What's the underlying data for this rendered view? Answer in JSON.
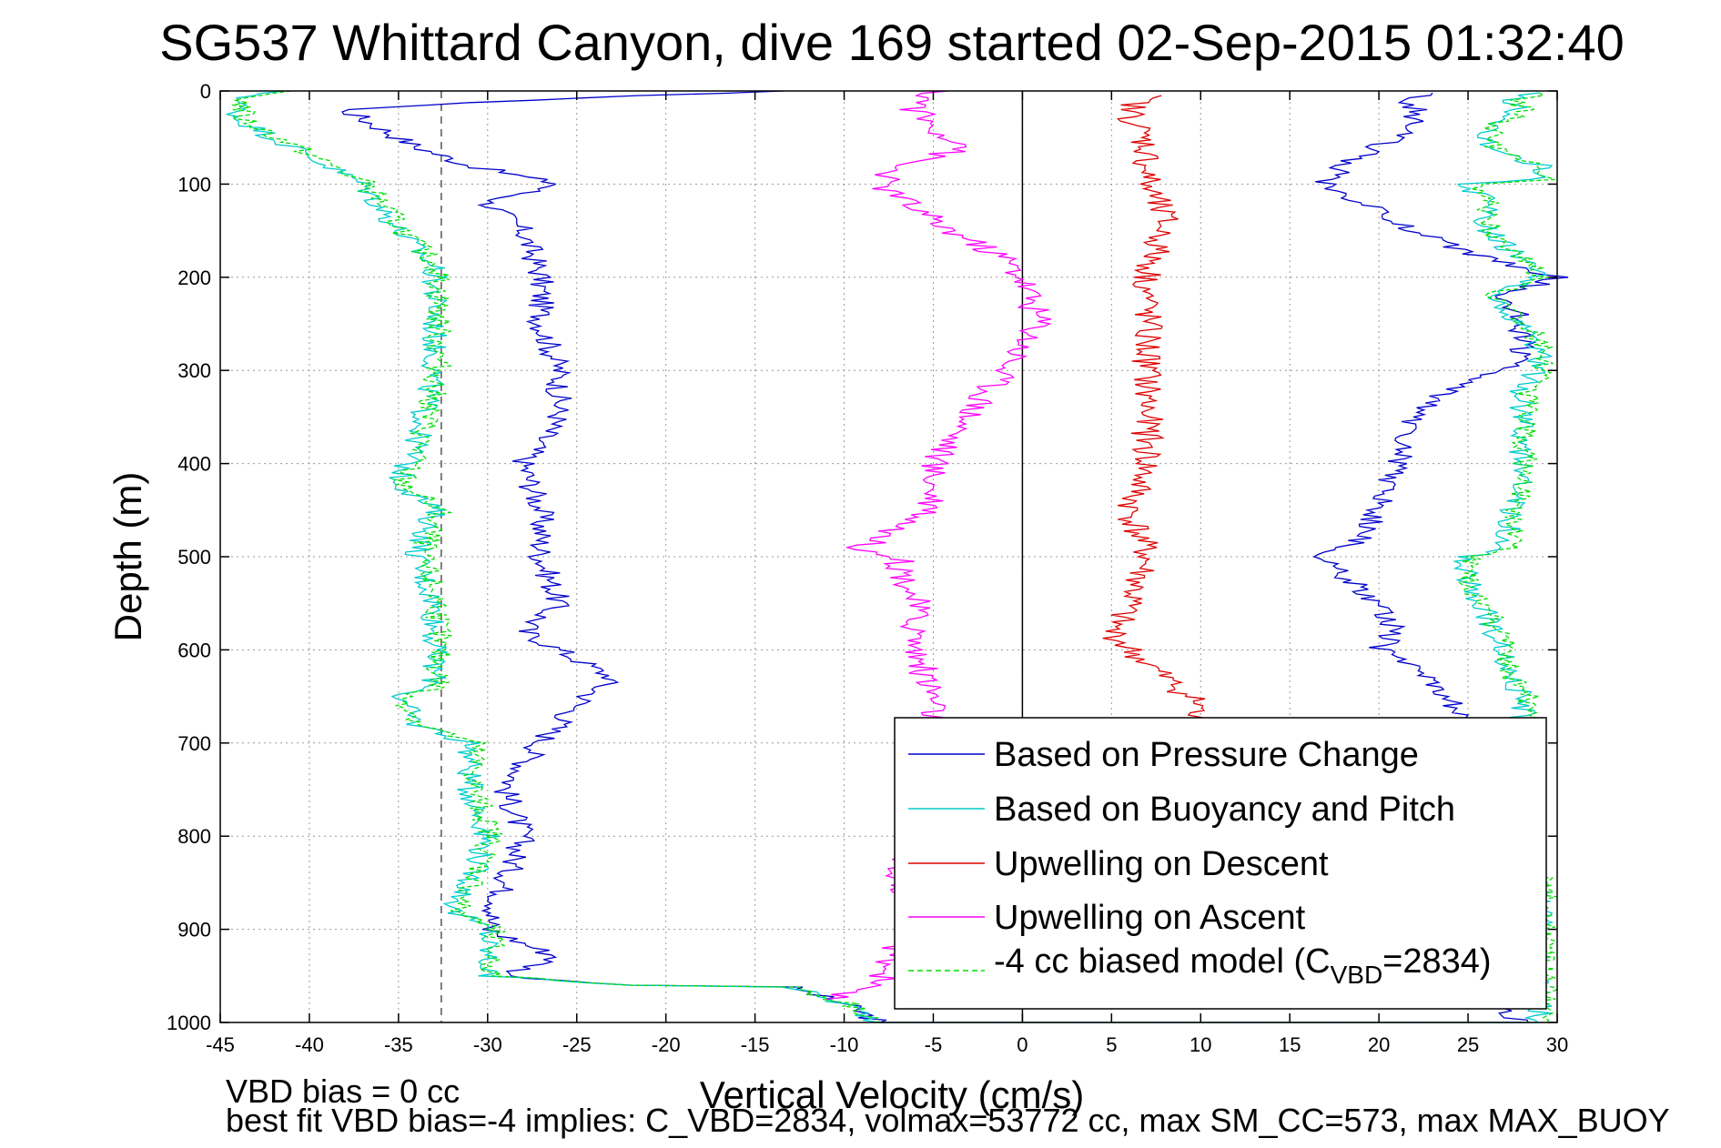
{
  "chart_data": {
    "type": "line",
    "title": "SG537 Whittard Canyon, dive 169 started 02-Sep-2015 01:32:40",
    "xlabel": "Vertical Velocity (cm/s)",
    "ylabel": "Depth (m)",
    "xlim": [
      -45,
      30
    ],
    "ylim": [
      0,
      1000
    ],
    "y_reversed": true,
    "grid": true,
    "legend_position": "bottom-right",
    "x_ticks": [
      "-45",
      "-40",
      "-35",
      "-30",
      "-25",
      "-20",
      "-15",
      "-10",
      "-5",
      "0",
      "5",
      "10",
      "15",
      "20",
      "25",
      "30"
    ],
    "y_ticks": [
      "0",
      "100",
      "200",
      "300",
      "400",
      "500",
      "600",
      "700",
      "800",
      "900",
      "1000"
    ],
    "reference_lines": [
      {
        "style": "solid",
        "color": "#000000",
        "x": 0
      },
      {
        "style": "dashed",
        "color": "#555555",
        "x": -32.6
      }
    ],
    "series": [
      {
        "name": "Based on Pressure Change",
        "color": "#0000cc",
        "style": "solid",
        "depth": [
          0,
          10,
          20,
          40,
          60,
          80,
          100,
          120,
          150,
          200,
          250,
          300,
          350,
          400,
          450,
          500,
          550,
          580,
          600,
          630,
          660,
          700,
          750,
          800,
          850,
          900,
          930,
          950,
          960,
          962,
          980,
          1000,
          1000,
          990,
          960,
          930,
          900,
          860,
          800,
          750,
          700,
          650,
          620,
          600,
          580,
          550,
          520,
          500,
          480,
          450,
          400,
          350,
          320,
          300,
          280,
          250,
          220,
          200,
          180,
          150,
          120,
          100,
          80,
          60,
          40,
          20,
          10,
          2
        ],
        "values": [
          -14,
          -28,
          -38,
          -36,
          -34,
          -31,
          -26,
          -30,
          -28,
          -27,
          -27,
          -26,
          -26,
          -28,
          -27,
          -27,
          -26,
          -28,
          -26,
          -23,
          -25,
          -27,
          -29,
          -28,
          -29,
          -30,
          -26,
          -29,
          -22,
          -13,
          -10,
          -8,
          28,
          27,
          26,
          26,
          25,
          25,
          25,
          25,
          25,
          24,
          22,
          20,
          21,
          20,
          18,
          17,
          19,
          20,
          21,
          22,
          24,
          27,
          28,
          28,
          27,
          30,
          26,
          22,
          19,
          17,
          18,
          20,
          22,
          22,
          21,
          23
        ]
      },
      {
        "name": "Based on Buoyancy and Pitch",
        "color": "#00cccc",
        "style": "solid",
        "depth": [
          0,
          10,
          30,
          60,
          100,
          150,
          190,
          200,
          250,
          300,
          380,
          420,
          450,
          500,
          550,
          600,
          640,
          650,
          680,
          700,
          750,
          800,
          850,
          880,
          900,
          950,
          960,
          962,
          980,
          1000,
          1000,
          900,
          860,
          800,
          700,
          650,
          620,
          600,
          560,
          540,
          500,
          490,
          400,
          350,
          320,
          300,
          280,
          250,
          220,
          200,
          180,
          150,
          120,
          100,
          95,
          80,
          60,
          40,
          20,
          10,
          2
        ],
        "values": [
          -42,
          -44,
          -44,
          -41,
          -37,
          -35,
          -33,
          -33,
          -33,
          -33,
          -34,
          -35,
          -33,
          -34,
          -33,
          -33,
          -33,
          -35,
          -34,
          -31,
          -31,
          -30,
          -31,
          -32,
          -30,
          -30,
          -22,
          -13,
          -10,
          -8,
          29,
          29,
          29,
          28,
          28,
          28,
          27,
          27,
          26,
          25,
          25,
          27,
          28,
          28,
          28,
          29,
          29,
          28,
          26,
          29,
          28,
          26,
          26,
          25,
          29,
          29,
          26,
          26,
          28,
          27,
          29
        ]
      },
      {
        "name": "Upwelling on Descent",
        "color": "#dd0000",
        "style": "solid",
        "depth": [
          5,
          20,
          60,
          100,
          140,
          200,
          250,
          300,
          350,
          400,
          450,
          500,
          550,
          580,
          600,
          630,
          660,
          680
        ],
        "values": [
          7,
          6,
          7,
          7,
          8,
          7,
          7,
          7,
          7,
          7,
          6,
          7,
          6,
          5,
          6,
          8,
          10,
          9
        ]
      },
      {
        "name": "Upwelling on Ascent",
        "color": "#ff00ff",
        "style": "solid",
        "depth": [
          0,
          20,
          40,
          60,
          80,
          100,
          140,
          180,
          200,
          250,
          300,
          350,
          400,
          450,
          490,
          500,
          550,
          600,
          650,
          690,
          860,
          870,
          960,
          970,
          975
        ],
        "values": [
          -5,
          -6,
          -5,
          -3,
          -7,
          -8,
          -5,
          -1,
          0,
          1,
          -1,
          -3,
          -5,
          -5,
          -9,
          -7,
          -6,
          -6,
          -5,
          -5,
          -7,
          -6,
          -8,
          -10,
          -11
        ]
      },
      {
        "name": "-4 cc biased model (CVBD=2834)",
        "color": "#00dd00",
        "style": "dashed",
        "depth": [
          0,
          10,
          30,
          60,
          100,
          150,
          190,
          200,
          250,
          300,
          380,
          420,
          450,
          500,
          550,
          600,
          640,
          650,
          680,
          700,
          750,
          800,
          850,
          880,
          900,
          950,
          960,
          962,
          980,
          1000,
          1000,
          900,
          860,
          800,
          700,
          650,
          620,
          600,
          560,
          540,
          500,
          490,
          400,
          350,
          320,
          300,
          280,
          250,
          220,
          200,
          180,
          150,
          120,
          100,
          95,
          80,
          60,
          40,
          20,
          10,
          2
        ],
        "values": [
          -42,
          -44,
          -44,
          -41,
          -37,
          -35,
          -33,
          -33,
          -33,
          -33,
          -34,
          -35,
          -33,
          -34,
          -33,
          -33,
          -33,
          -35,
          -34,
          -31,
          -31,
          -30,
          -31,
          -32,
          -30,
          -30,
          -22,
          -13,
          -10,
          -8,
          29,
          29,
          29,
          28,
          28,
          28,
          27,
          27,
          26,
          25,
          25,
          27,
          28,
          28,
          28,
          29,
          29,
          28,
          26,
          29,
          28,
          26,
          26,
          25,
          29,
          29,
          26,
          26,
          28,
          27,
          29
        ]
      }
    ],
    "legend": {
      "entries": [
        {
          "text": "Based on Pressure Change"
        },
        {
          "text": "Based on Buoyancy and Pitch"
        },
        {
          "text": "Upwelling on Descent"
        },
        {
          "text": "Upwelling on Ascent"
        },
        {
          "text_pre": "-4 cc biased model (C",
          "text_sub": "VBD",
          "text_post": "=2834)"
        }
      ]
    },
    "footer": {
      "line1": "VBD bias = 0 cc",
      "line2": "best fit VBD bias=-4 implies: C_VBD=2834, volmax=53772 cc, max SM_CC=573, max MAX_BUOY"
    }
  }
}
